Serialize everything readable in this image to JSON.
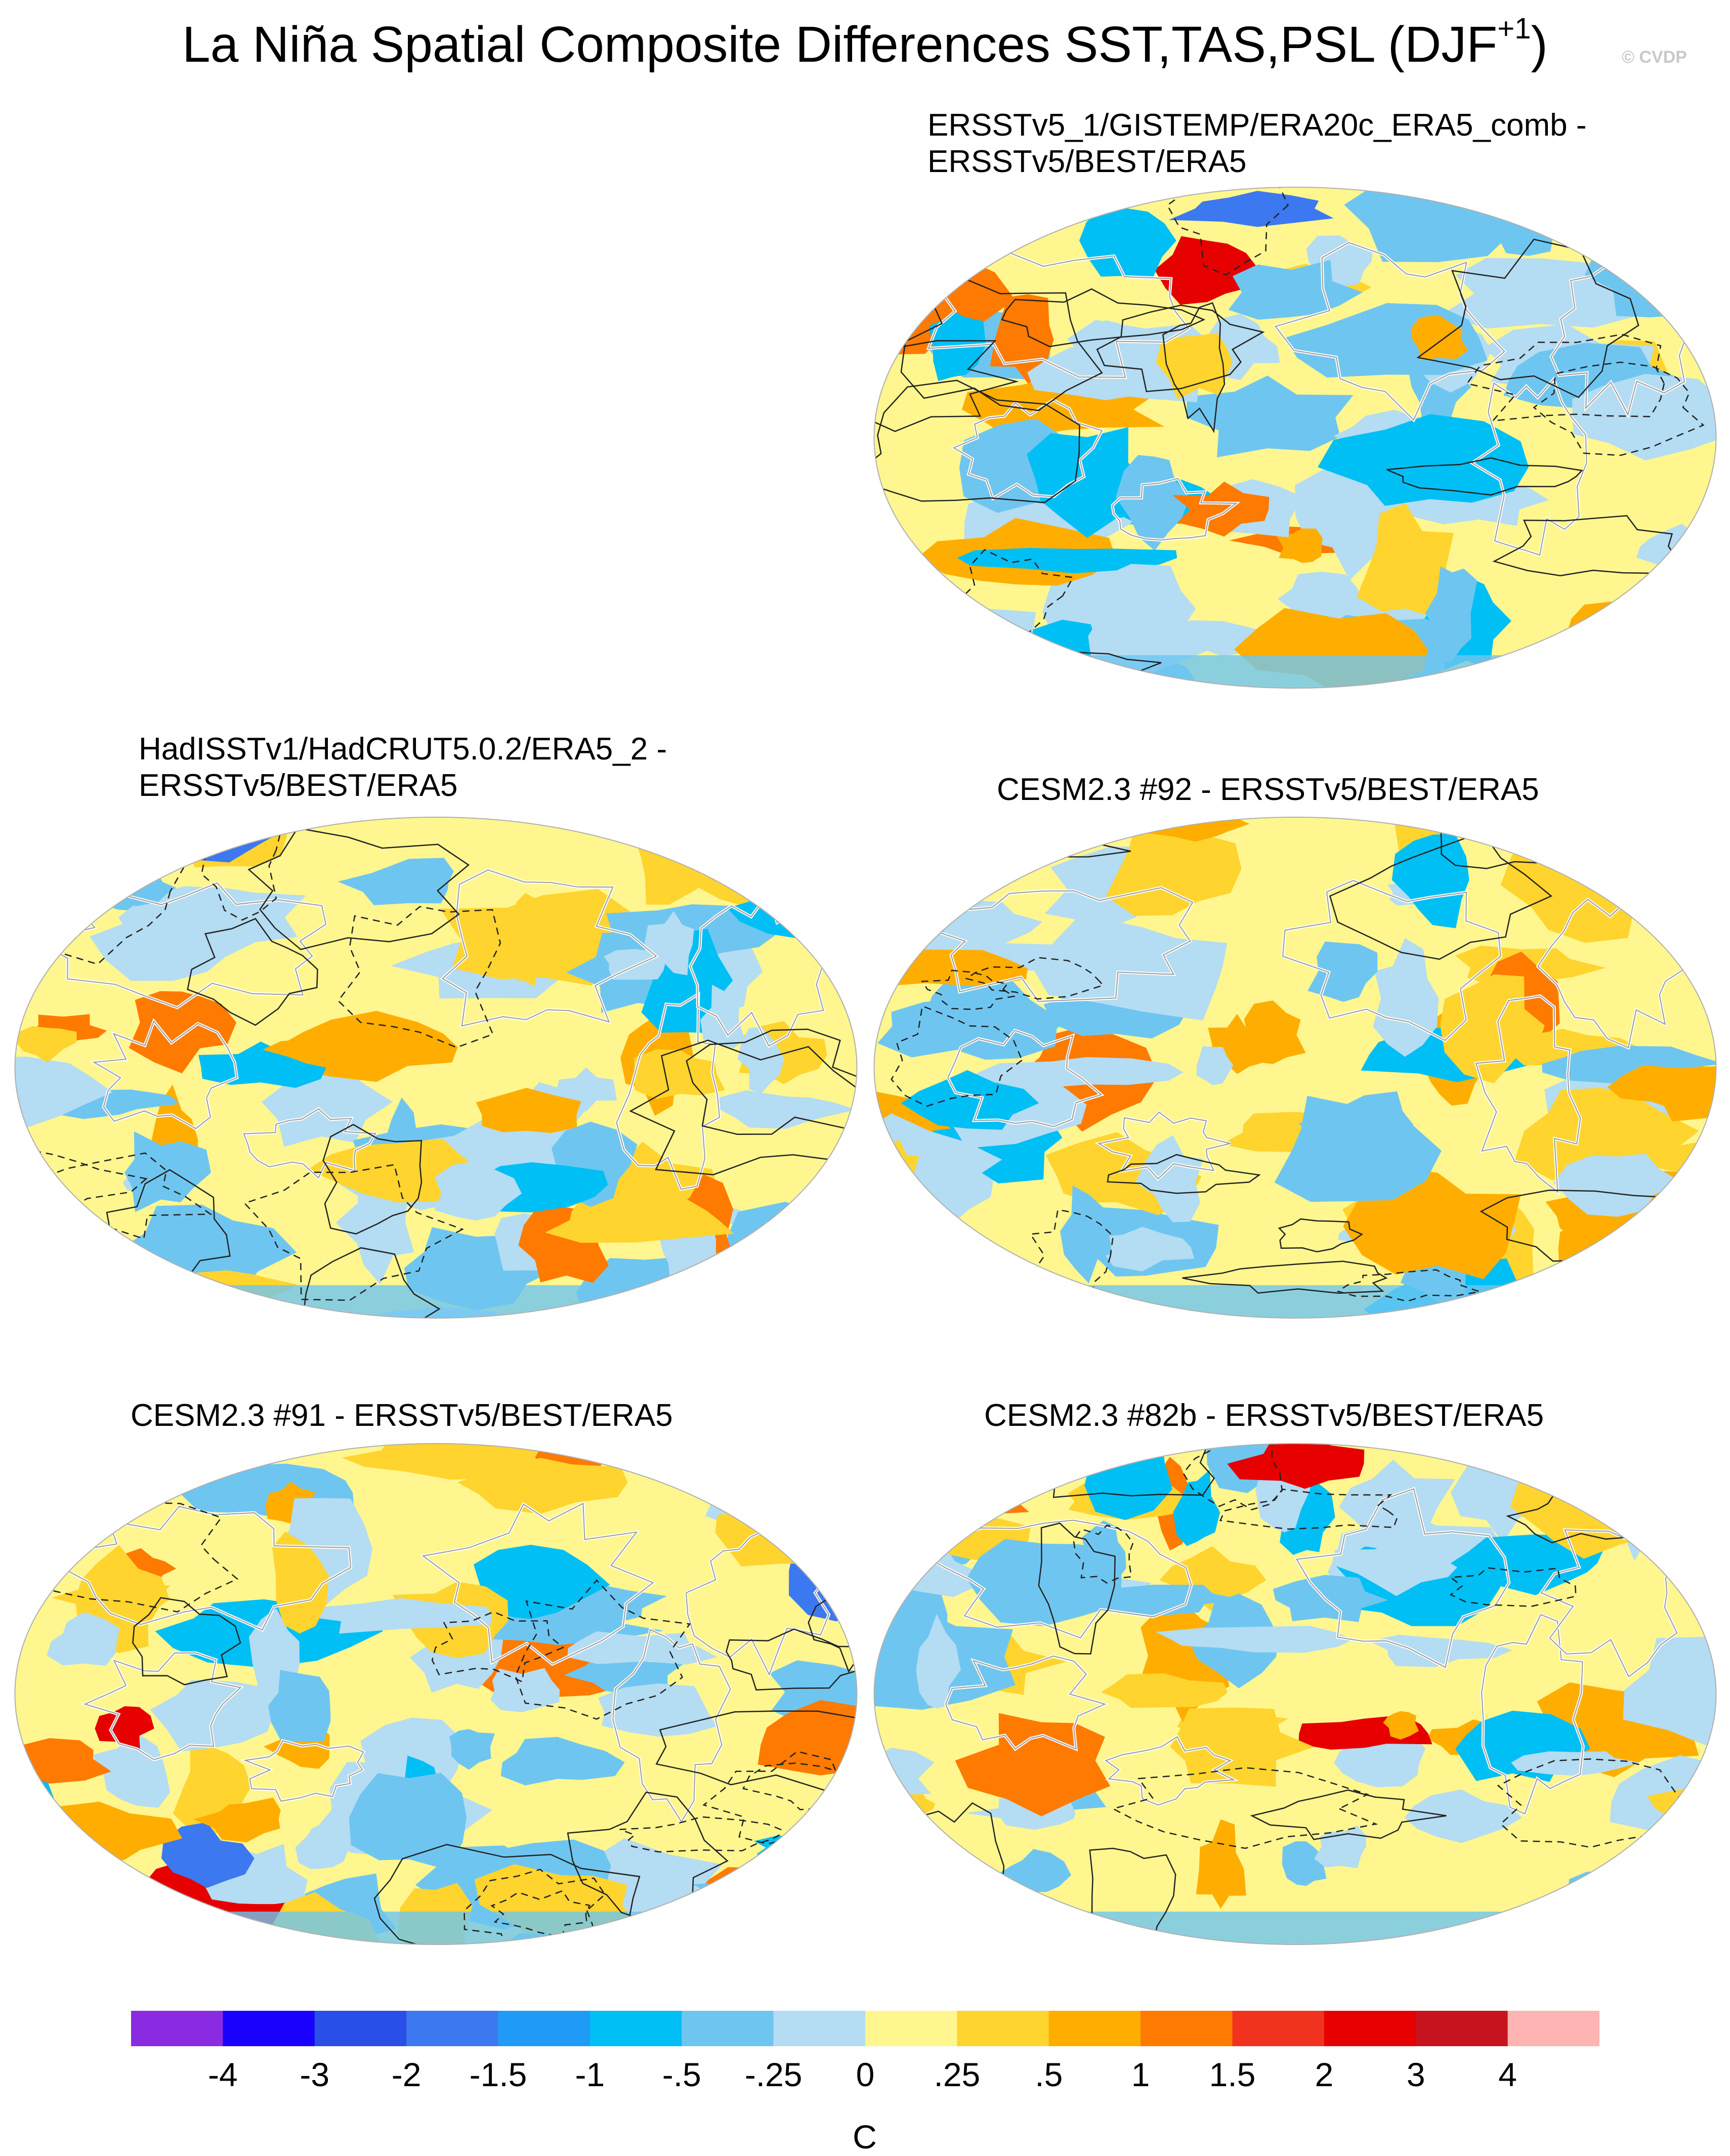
{
  "figure": {
    "title": "La Niña Spatial Composite Differences SST,TAS,PSL (DJF",
    "title_sup": "+1",
    "title_close": ")",
    "watermark": "© CVDP"
  },
  "panels": [
    {
      "id": "p1",
      "lines": [
        "ERSSTv5_1/GISTEMP/ERA20c_ERA5_comb -",
        "ERSSTv5/BEST/ERA5"
      ],
      "seed": 11
    },
    {
      "id": "p2",
      "lines": [
        "HadISSTv1/HadCRUT5.0.2/ERA5_2 -",
        "ERSSTv5/BEST/ERA5"
      ],
      "seed": 23
    },
    {
      "id": "p3",
      "lines": [
        "CESM2.3 #92 - ERSSTv5/BEST/ERA5"
      ],
      "seed": 37
    },
    {
      "id": "p4",
      "lines": [
        "CESM2.3 #91 - ERSSTv5/BEST/ERA5"
      ],
      "seed": 41
    },
    {
      "id": "p5",
      "lines": [
        "CESM2.3 #82b - ERSSTv5/BEST/ERA5"
      ],
      "seed": 59
    }
  ],
  "colorbar": {
    "unit": "C",
    "labels": [
      "-4",
      "-3",
      "-2",
      "-1.5",
      "-1",
      "-.5",
      "-.25",
      "0",
      ".25",
      ".5",
      "1",
      "1.5",
      "2",
      "3",
      "4"
    ],
    "colors": [
      "#8a2be2",
      "#1a00ff",
      "#2a4fe6",
      "#3c78f0",
      "#1f9bf7",
      "#00bff5",
      "#6ec6f0",
      "#b4dcf2",
      "#fff68f",
      "#ffd42e",
      "#ffae00",
      "#ff7a00",
      "#f0321e",
      "#e60000",
      "#c8141e",
      "#ffb4b4"
    ]
  }
}
